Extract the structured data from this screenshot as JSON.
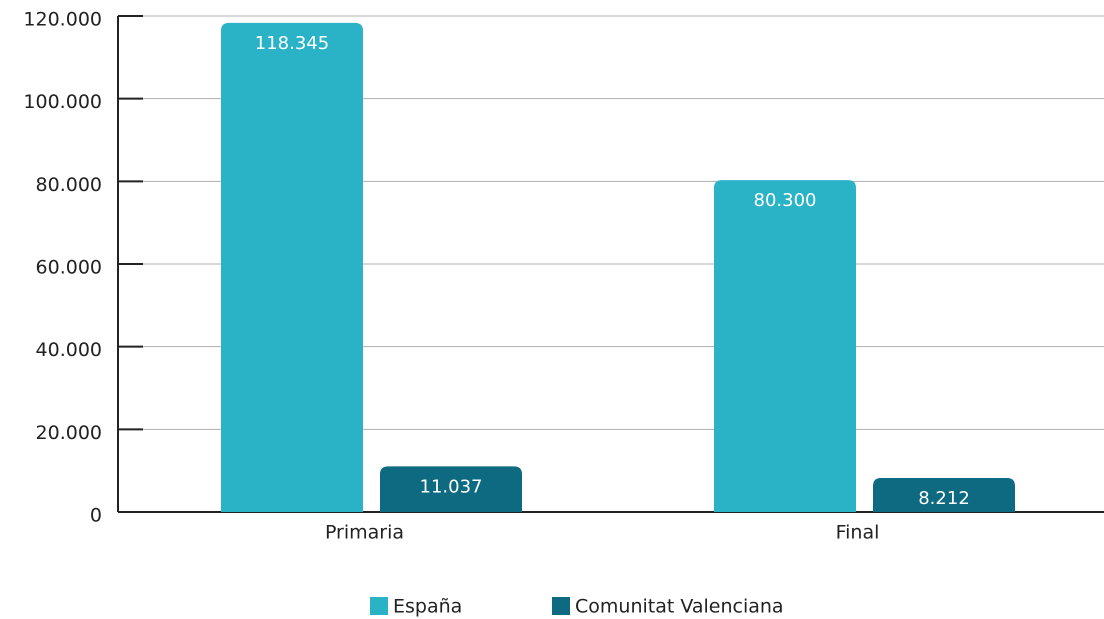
{
  "chart_data": {
    "type": "bar",
    "categories": [
      "Primaria",
      "Final"
    ],
    "series": [
      {
        "name": "España",
        "color": "#2ab3c6",
        "values": [
          118345,
          80300
        ],
        "value_labels": [
          "118.345",
          "80.300"
        ]
      },
      {
        "name": "Comunitat Valenciana",
        "color": "#0e6a80",
        "values": [
          11037,
          8212
        ],
        "value_labels": [
          "11.037",
          "8.212"
        ]
      }
    ],
    "ylim": [
      0,
      120000
    ],
    "yticks": [
      0,
      {
        "value": 20000,
        "label": "20.000"
      },
      {
        "value": 40000,
        "label": "40.000"
      },
      {
        "value": 60000,
        "label": "60.000"
      },
      {
        "value": 80000,
        "label": "80.000"
      },
      {
        "value": 100000,
        "label": "100.000"
      },
      {
        "value": 120000,
        "label": "120.000"
      }
    ],
    "grid": true,
    "legend": "bottom"
  }
}
